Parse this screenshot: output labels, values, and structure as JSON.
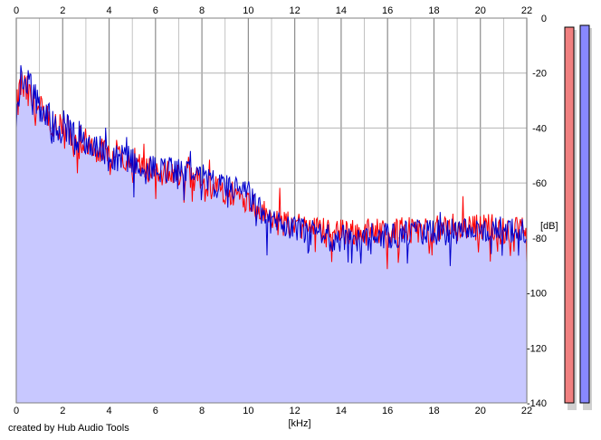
{
  "credit": "created by Hub Audio Tools",
  "colors": {
    "fill": "#c8c8ff",
    "left": "#ff0000",
    "right": "#0000cc",
    "grid": "#b4b4b4",
    "major_grid": "#8c8c8c",
    "meter_left": "#f08080",
    "meter_right": "#8888ff"
  },
  "chart_data": {
    "type": "area",
    "title": "",
    "xlabel": "[kHz]",
    "ylabel": "[dB]",
    "xlim": [
      0,
      22
    ],
    "ylim": [
      -140,
      0
    ],
    "x_ticks": [
      0,
      2,
      4,
      6,
      8,
      10,
      12,
      14,
      16,
      18,
      20,
      22
    ],
    "x_tick_labels": [
      "0",
      "2",
      "4",
      "6",
      "8",
      "10",
      "12",
      "14",
      "16",
      "18",
      "20",
      "22"
    ],
    "y_ticks": [
      0,
      -20,
      -40,
      -60,
      -80,
      -100,
      -120,
      -140
    ],
    "y_tick_labels": [
      "0",
      "-20",
      "-40",
      "-60",
      "-80",
      "-100",
      "-120",
      "-140"
    ],
    "grid": true,
    "x_axis_position": "top and bottom",
    "y_axis_position": "right",
    "series": [
      {
        "color": "red",
        "x": [
          0,
          0.2,
          0.5,
          0.8,
          1.0,
          1.5,
          2.0,
          2.5,
          3.0,
          3.5,
          4.0,
          4.5,
          5.0,
          5.5,
          6.0,
          6.5,
          7.0,
          7.5,
          8.0,
          8.5,
          9.0,
          9.5,
          10.0,
          10.5,
          11.0,
          11.5,
          12.0,
          12.5,
          13.0,
          13.5,
          14.0,
          14.5,
          15.0,
          15.5,
          16.0,
          16.5,
          17.0,
          17.5,
          18.0,
          18.5,
          19.0,
          19.5,
          20.0,
          20.5,
          21.0,
          21.5,
          22.0
        ],
        "values": [
          -35,
          -24,
          -28,
          -32,
          -34,
          -40,
          -42,
          -44,
          -46,
          -48,
          -50,
          -50,
          -52,
          -54,
          -56,
          -56,
          -57,
          -58,
          -60,
          -62,
          -63,
          -64,
          -66,
          -70,
          -73,
          -75,
          -75,
          -76,
          -77,
          -77,
          -78,
          -78,
          -78,
          -77,
          -78,
          -77,
          -77,
          -77,
          -77,
          -76,
          -76,
          -76,
          -76,
          -76,
          -77,
          -77,
          -77
        ]
      },
      {
        "color": "blue",
        "x": [
          0,
          0.2,
          0.5,
          0.8,
          1.0,
          1.5,
          2.0,
          2.5,
          3.0,
          3.5,
          4.0,
          4.5,
          5.0,
          5.5,
          6.0,
          6.5,
          7.0,
          7.5,
          8.0,
          8.5,
          9.0,
          9.5,
          10.0,
          10.5,
          11.0,
          11.5,
          12.0,
          12.5,
          13.0,
          13.5,
          14.0,
          14.5,
          15.0,
          15.5,
          16.0,
          16.5,
          17.0,
          17.5,
          18.0,
          18.5,
          19.0,
          19.5,
          20.0,
          20.5,
          21.0,
          21.5,
          22.0
        ],
        "values": [
          -38,
          -20,
          -25,
          -30,
          -32,
          -38,
          -40,
          -43,
          -45,
          -47,
          -50,
          -51,
          -52,
          -54,
          -55,
          -55,
          -56,
          -57,
          -58,
          -60,
          -61,
          -62,
          -64,
          -70,
          -74,
          -76,
          -77,
          -78,
          -79,
          -80,
          -80,
          -81,
          -80,
          -79,
          -79,
          -79,
          -78,
          -78,
          -78,
          -78,
          -78,
          -78,
          -77,
          -77,
          -77,
          -78,
          -78
        ]
      }
    ],
    "level_meters": [
      {
        "channel": "left",
        "level_db": -4
      },
      {
        "channel": "right",
        "level_db": -3
      }
    ]
  }
}
